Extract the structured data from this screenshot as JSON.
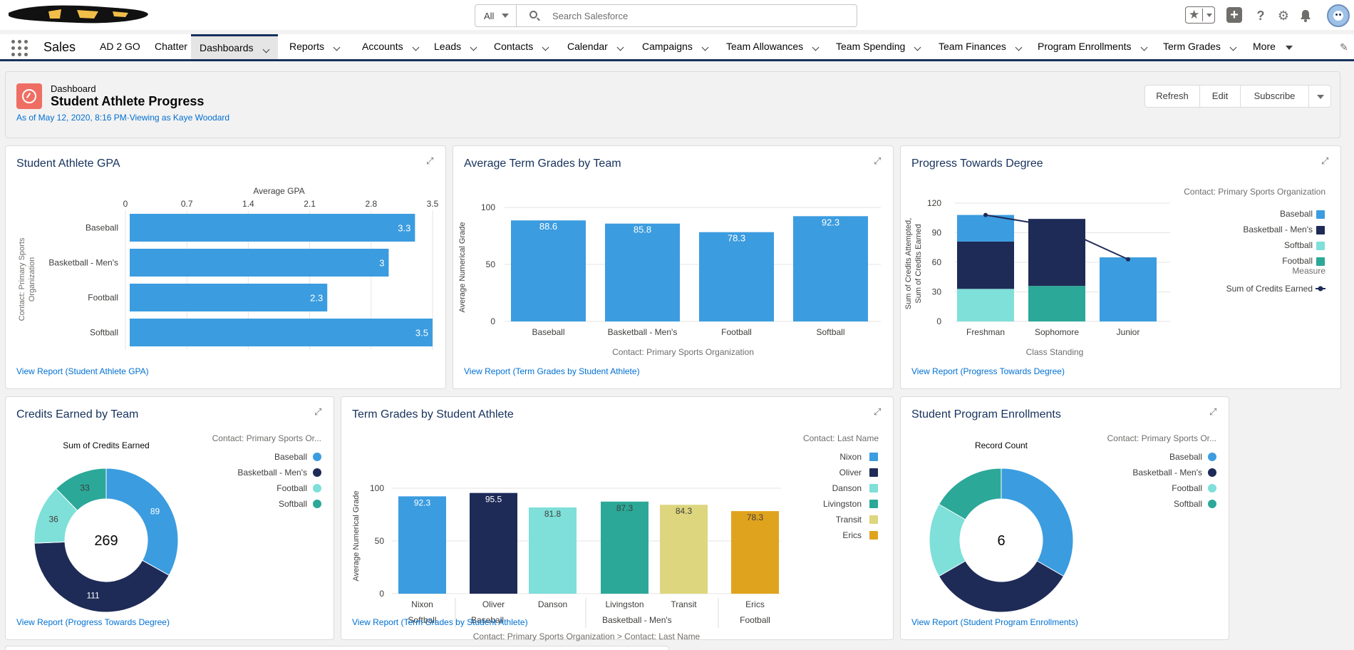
{
  "header": {
    "search": {
      "scope": "All",
      "placeholder": "Search Salesforce"
    },
    "icons": [
      "favorites-star-icon",
      "add-icon",
      "help-icon",
      "setup-gear-icon",
      "notifications-bell-icon",
      "user-avatar"
    ]
  },
  "nav": {
    "app_name": "Sales",
    "items": [
      {
        "label": "AD 2 GO",
        "chevron": false,
        "active": false
      },
      {
        "label": "Chatter",
        "chevron": false,
        "active": false
      },
      {
        "label": "Dashboards",
        "chevron": true,
        "active": true
      },
      {
        "label": "Reports",
        "chevron": true,
        "active": false
      },
      {
        "label": "Accounts",
        "chevron": true,
        "active": false
      },
      {
        "label": "Leads",
        "chevron": true,
        "active": false
      },
      {
        "label": "Contacts",
        "chevron": true,
        "active": false
      },
      {
        "label": "Calendar",
        "chevron": true,
        "active": false
      },
      {
        "label": "Campaigns",
        "chevron": true,
        "active": false
      },
      {
        "label": "Team Allowances",
        "chevron": true,
        "active": false
      },
      {
        "label": "Team Spending",
        "chevron": true,
        "active": false
      },
      {
        "label": "Team Finances",
        "chevron": true,
        "active": false
      },
      {
        "label": "Program Enrollments",
        "chevron": true,
        "active": false
      },
      {
        "label": "Term Grades",
        "chevron": true,
        "active": false
      },
      {
        "label": "More",
        "chevron": "caret",
        "active": false
      }
    ]
  },
  "dashboard": {
    "eyebrow": "Dashboard",
    "title": "Student Athlete Progress",
    "meta": "As of May 12, 2020, 8:16 PM·Viewing as Kaye Woodard",
    "buttons": {
      "refresh": "Refresh",
      "edit": "Edit",
      "subscribe": "Subscribe"
    }
  },
  "colors": {
    "blue": "#3b9ce0",
    "navy": "#1e2b57",
    "light_teal": "#7fdfd9",
    "teal": "#2ba898",
    "khaki": "#ddd67f",
    "orange": "#e0a31e",
    "grid": "#e5e5e5",
    "axis_text": "#3e3e3c"
  },
  "cards": {
    "gpa": {
      "title": "Student Athlete GPA",
      "link": "View Report (Student Athlete GPA)",
      "chart_data": {
        "type": "bar",
        "orientation": "horizontal",
        "title": "",
        "xlabel": "Average GPA",
        "ylabel": "Contact: Primary Sports Organization",
        "xlim": [
          0,
          3.5
        ],
        "xticks": [
          "0",
          "0.7",
          "1.4",
          "2.1",
          "2.8",
          "3.5"
        ],
        "categories": [
          "Baseball",
          "Basketball - Men's",
          "Football",
          "Softball"
        ],
        "values": [
          3.3,
          3,
          2.3,
          3.5
        ],
        "labels": [
          "3.3",
          "3",
          "2.3",
          "3.5"
        ]
      }
    },
    "avg_term": {
      "title": "Average Term Grades by Team",
      "link": "View Report (Term Grades by Student Athlete)",
      "chart_data": {
        "type": "bar",
        "title": "",
        "xlabel": "Contact: Primary Sports Organization",
        "ylabel": "Average Numerical Grade",
        "ylim": [
          0,
          100
        ],
        "yticks": [
          "0",
          "50",
          "100"
        ],
        "categories": [
          "Baseball",
          "Basketball - Men's",
          "Football",
          "Softball"
        ],
        "values": [
          88.6,
          85.8,
          78.3,
          92.3
        ],
        "labels": [
          "88.6",
          "85.8",
          "78.3",
          "92.3"
        ]
      }
    },
    "progress": {
      "title": "Progress Towards Degree",
      "link": "View Report (Progress Towards Degree)",
      "chart_data": {
        "type": "bar",
        "stacked": true,
        "title": "",
        "xlabel": "Class Standing",
        "ylabel": "Sum of Credits Attempted, Sum of Credits Earned",
        "ylim": [
          0,
          120
        ],
        "yticks": [
          "0",
          "30",
          "60",
          "90",
          "120"
        ],
        "categories": [
          "Freshman",
          "Sophomore",
          "Junior"
        ],
        "legend_title": "Contact: Primary Sports Organization",
        "measure_title": "Measure",
        "series": [
          {
            "name": "Baseball",
            "values": [
              27,
              0,
              65
            ]
          },
          {
            "name": "Basketball - Men's",
            "values": [
              48,
              68,
              0
            ]
          },
          {
            "name": "Softball",
            "values": [
              33,
              0,
              0
            ]
          },
          {
            "name": "Football",
            "values": [
              0,
              36,
              0
            ]
          }
        ],
        "line_series": {
          "name": "Sum of Credits Earned",
          "values": [
            108,
            96,
            63
          ]
        }
      }
    },
    "credits_team": {
      "title": "Credits Earned by Team",
      "link": "View Report (Progress Towards Degree)",
      "chart_data": {
        "type": "pie",
        "donut": true,
        "title": "Sum of Credits Earned",
        "legend_title": "Contact: Primary Sports Or...",
        "total": "269",
        "slices": [
          {
            "name": "Baseball",
            "value": 89
          },
          {
            "name": "Basketball - Men's",
            "value": 111
          },
          {
            "name": "Football",
            "value": 36
          },
          {
            "name": "Softball",
            "value": 33
          }
        ]
      }
    },
    "term_grades": {
      "title": "Term Grades by Student Athlete",
      "link": "View Report (Term Grades by Student Athlete)",
      "chart_data": {
        "type": "bar",
        "title": "",
        "xlabel": "Contact: Primary Sports Organization  >  Contact: Last Name",
        "ylabel": "Average Numerical Grade",
        "ylim": [
          0,
          100
        ],
        "yticks": [
          "0",
          "50",
          "100"
        ],
        "legend_title": "Contact: Last Name",
        "categories": [
          "Nixon",
          "Oliver",
          "Danson",
          "Livingston",
          "Transit",
          "Erics"
        ],
        "groups": [
          {
            "name": "Softball",
            "members": [
              "Nixon"
            ]
          },
          {
            "name": "Baseball",
            "members": [
              "Oliver",
              "Danson"
            ]
          },
          {
            "name": "Basketball - Men's",
            "members": [
              "Livingston",
              "Transit"
            ]
          },
          {
            "name": "Football",
            "members": [
              "Erics"
            ]
          }
        ],
        "values": [
          92.3,
          95.5,
          81.8,
          87.3,
          84.3,
          78.3
        ],
        "labels": [
          "92.3",
          "95.5",
          "81.8",
          "87.3",
          "84.3",
          "78.3"
        ]
      }
    },
    "enrollments": {
      "title": "Student Program Enrollments",
      "link": "View Report (Student Program Enrollments)",
      "chart_data": {
        "type": "pie",
        "donut": true,
        "title": "Record Count",
        "legend_title": "Contact: Primary Sports Or...",
        "total": "6",
        "slices": [
          {
            "name": "Baseball",
            "value": 2
          },
          {
            "name": "Basketball - Men's",
            "value": 2
          },
          {
            "name": "Football",
            "value": 1
          },
          {
            "name": "Softball",
            "value": 1
          }
        ]
      }
    }
  }
}
